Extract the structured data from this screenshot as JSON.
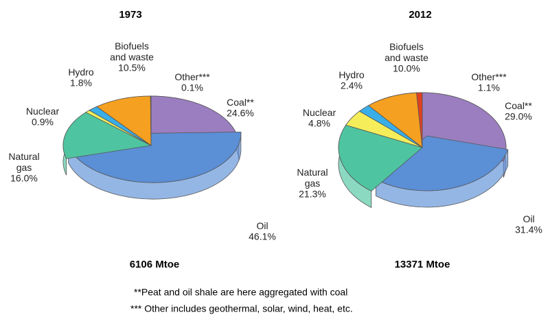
{
  "chart_data": [
    {
      "type": "pie",
      "title": "1973",
      "subtitle": "6106 Mtoe",
      "categories": [
        "Coal**",
        "Oil",
        "Natural\ngas",
        "Nuclear",
        "Hydro",
        "Biofuels\nand waste",
        "Other***"
      ],
      "values": [
        24.6,
        46.1,
        16.0,
        0.9,
        1.8,
        10.5,
        0.1
      ],
      "value_labels": [
        "24.6%",
        "46.1%",
        "16.0%",
        "0.9%",
        "1.8%",
        "10.5%",
        "0.1%"
      ],
      "colors": [
        "#9b7ec0",
        "#5b8fd6",
        "#4fc4a0",
        "#f5ee5a",
        "#3aaee8",
        "#f5a020",
        "#e04020"
      ]
    },
    {
      "type": "pie",
      "title": "2012",
      "subtitle": "13371 Mtoe",
      "categories": [
        "Coal**",
        "Oil",
        "Natural\ngas",
        "Nuclear",
        "Hydro",
        "Biofuels\nand waste",
        "Other***"
      ],
      "values": [
        29.0,
        31.4,
        21.3,
        4.8,
        2.4,
        10.0,
        1.1
      ],
      "value_labels": [
        "29.0%",
        "31.4%",
        "21.3%",
        "4.8%",
        "2.4%",
        "10.0%",
        "1.1%"
      ],
      "colors": [
        "#9b7ec0",
        "#5b8fd6",
        "#4fc4a0",
        "#f5ee5a",
        "#3aaee8",
        "#f5a020",
        "#e04020"
      ]
    }
  ],
  "notes": [
    "**Peat and oil shale are here aggregated with coal",
    "*** Other includes geothermal, solar, wind, heat, etc."
  ]
}
